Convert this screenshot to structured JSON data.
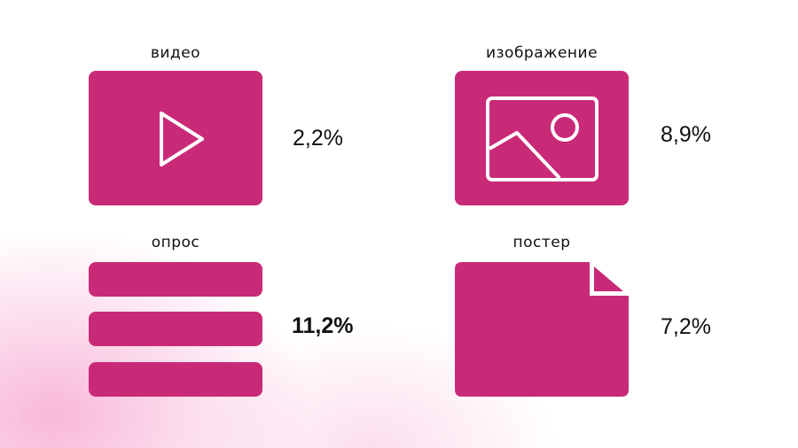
{
  "accent_color": "#C92A78",
  "items": [
    {
      "label": "видео",
      "value": "2,2%",
      "icon": "play-icon"
    },
    {
      "label": "изображение",
      "value": "8,9%",
      "icon": "image-icon"
    },
    {
      "label": "опрос",
      "value": "11,2%",
      "icon": "list-icon",
      "highlighted": true
    },
    {
      "label": "постер",
      "value": "7,2%",
      "icon": "poster-icon"
    }
  ]
}
